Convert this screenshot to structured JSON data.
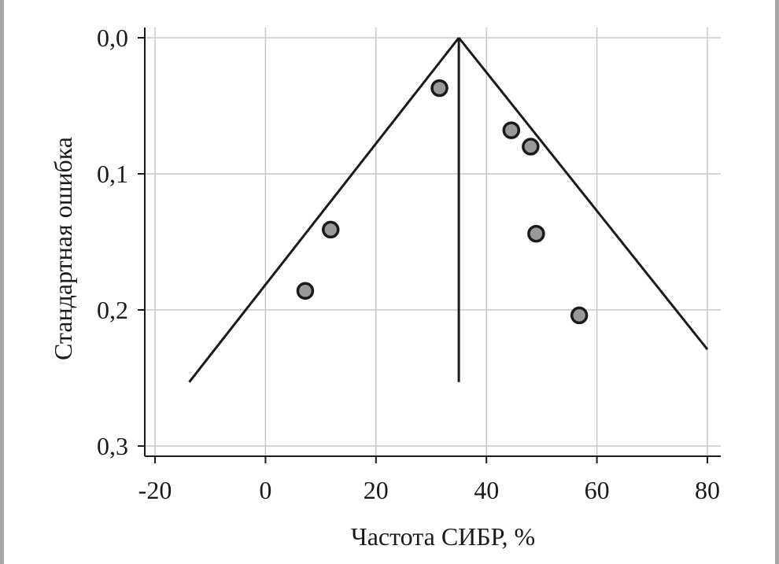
{
  "chart_data": {
    "type": "scatter",
    "subtype": "funnel-plot",
    "title": "",
    "xlabel": "Частота СИБР, %",
    "ylabel": "Стандартная ошибка",
    "xlim": [
      -21.5,
      82.5
    ],
    "ylim": [
      0.3,
      0.0
    ],
    "y_axis_reversed": true,
    "grid": true,
    "x_ticks": [
      -20,
      0,
      20,
      40,
      60,
      80
    ],
    "x_tick_labels": [
      "-20",
      "0",
      "20",
      "40",
      "60",
      "80"
    ],
    "y_ticks": [
      0.0,
      0.1,
      0.2,
      0.3
    ],
    "y_tick_labels": [
      "0,0",
      "0,1",
      "0,2",
      "0,3"
    ],
    "points": [
      {
        "x": 31.5,
        "y": 0.037
      },
      {
        "x": 44.5,
        "y": 0.068
      },
      {
        "x": 48.0,
        "y": 0.08
      },
      {
        "x": 11.8,
        "y": 0.141
      },
      {
        "x": 49.0,
        "y": 0.144
      },
      {
        "x": 7.2,
        "y": 0.186
      },
      {
        "x": 56.8,
        "y": 0.204
      }
    ],
    "pooled_line": {
      "x": 35.0,
      "y_from": 0.0,
      "y_to": 0.253
    },
    "funnel_left": [
      {
        "x": 35.0,
        "y": 0.0
      },
      {
        "x": -13.8,
        "y": 0.253
      }
    ],
    "funnel_right": [
      {
        "x": 35.0,
        "y": 0.0
      },
      {
        "x": 80.0,
        "y": 0.229
      }
    ],
    "colors": {
      "point_fill": "#999999",
      "point_stroke": "#1a1a1a",
      "line": "#1a1a1a",
      "grid": "#c8c8c8",
      "border": "#a7a7a7"
    }
  }
}
